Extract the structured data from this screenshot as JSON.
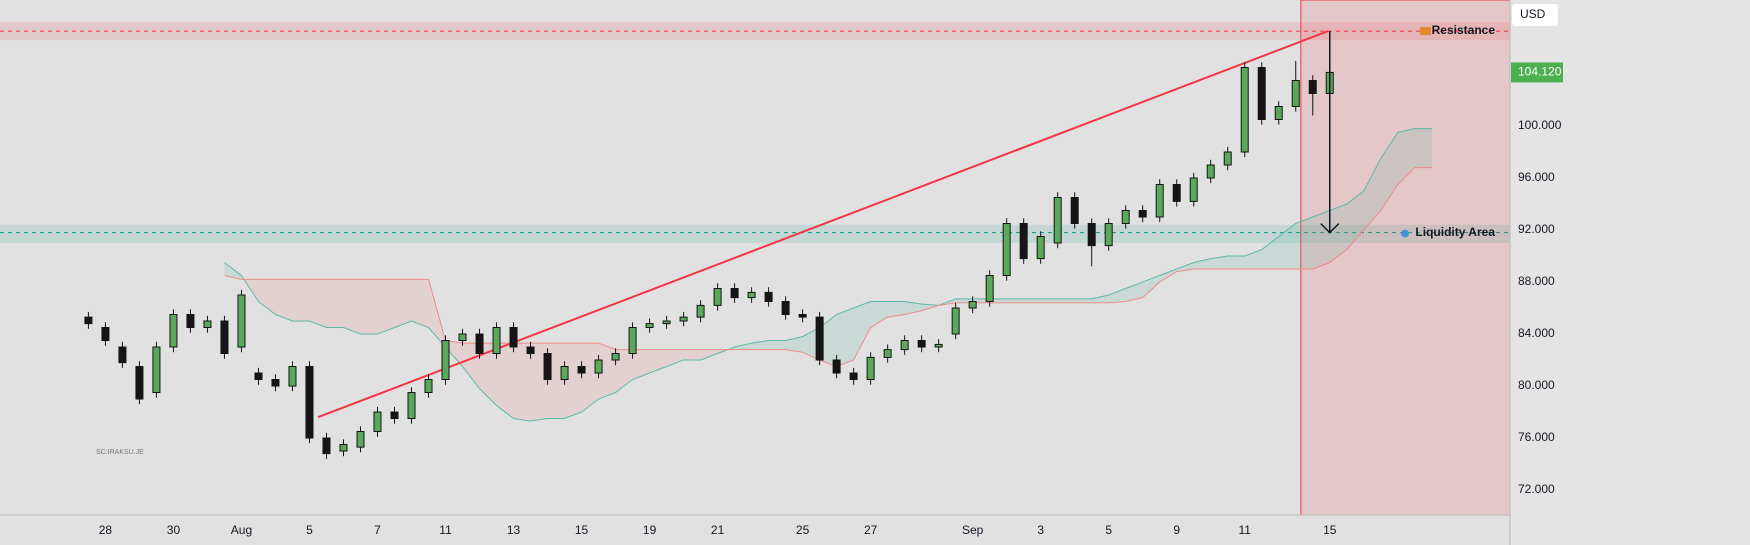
{
  "chart_data": {
    "type": "candlestick",
    "currency": "USD",
    "watermark": "SC:IRAKSU.JE",
    "xlim": [
      -5.2,
      83.6
    ],
    "ylim": [
      70.08,
      109.69
    ],
    "yticks": [
      {
        "value": 72,
        "label": "72.000"
      },
      {
        "value": 76,
        "label": "76.000"
      },
      {
        "value": 80,
        "label": "80.000"
      },
      {
        "value": 84,
        "label": "84.000"
      },
      {
        "value": 88,
        "label": "88.000"
      },
      {
        "value": 92,
        "label": "92.000"
      },
      {
        "value": 96,
        "label": "96.000"
      },
      {
        "value": 100,
        "label": "100.000"
      }
    ],
    "grid": false,
    "last_price": {
      "value": 104.12,
      "label": "104.120"
    },
    "up_color": "#5aa85a",
    "down_color": "#151515",
    "categories": [
      null,
      "28",
      null,
      null,
      null,
      "30",
      null,
      null,
      null,
      "Aug",
      null,
      null,
      null,
      "5",
      null,
      null,
      null,
      "7",
      null,
      null,
      null,
      "11",
      null,
      null,
      null,
      "13",
      null,
      null,
      null,
      "15",
      null,
      null,
      null,
      "19",
      null,
      null,
      null,
      "21",
      null,
      null,
      null,
      null,
      "25",
      null,
      null,
      null,
      "27",
      null,
      null,
      null,
      null,
      null,
      "Sep",
      null,
      null,
      null,
      "3",
      null,
      null,
      null,
      "5",
      null,
      null,
      null,
      "9",
      null,
      null,
      null,
      "11",
      null,
      null,
      null,
      null,
      "15",
      null,
      null,
      null,
      null,
      null,
      null
    ],
    "open": [
      85.3,
      84.5,
      83,
      81.5,
      79.5,
      83,
      85.5,
      84.5,
      85,
      83,
      81,
      80.5,
      80,
      81.5,
      76,
      75,
      75.3,
      76.5,
      78,
      77.5,
      79.5,
      80.5,
      83.5,
      84,
      82.5,
      84.5,
      83,
      82.5,
      80.5,
      81.5,
      81,
      82,
      82.5,
      84.5,
      84.8,
      85,
      85.3,
      86.2,
      87.5,
      86.8,
      87.2,
      86.5,
      85.5,
      85.3,
      82,
      81,
      80.5,
      82.2,
      82.8,
      83.5,
      83,
      84,
      86,
      86.5,
      88.5,
      92.5,
      89.8,
      91,
      94.5,
      92.5,
      90.8,
      92.5,
      93.5,
      93,
      95.5,
      94.2,
      96,
      97,
      98,
      104.5,
      100.5,
      101.5,
      103.5,
      102.5,
      null,
      null,
      null,
      null,
      null,
      null
    ],
    "high": [
      85.7,
      84.9,
      83.4,
      81.9,
      83.4,
      85.9,
      85.9,
      85.4,
      85.4,
      87.4,
      81.4,
      80.9,
      81.9,
      81.9,
      76.4,
      75.9,
      76.9,
      78.4,
      78.4,
      79.9,
      80.9,
      83.9,
      84.4,
      84.4,
      84.9,
      84.9,
      83.4,
      82.9,
      81.9,
      81.9,
      82.4,
      82.9,
      84.9,
      85.2,
      85.4,
      85.7,
      86.6,
      87.9,
      87.9,
      87.6,
      87.6,
      86.9,
      85.9,
      85.7,
      82.4,
      81.4,
      82.6,
      83.2,
      83.9,
      83.9,
      83.6,
      86.4,
      86.9,
      88.9,
      92.9,
      92.9,
      91.9,
      94.9,
      94.9,
      92.9,
      92.9,
      93.9,
      93.9,
      95.9,
      95.9,
      96.4,
      97.4,
      98.4,
      104.9,
      104.9,
      101.9,
      105.0,
      103.9,
      104.5,
      null,
      null,
      null,
      null,
      null,
      null
    ],
    "low": [
      84.4,
      83.1,
      81.4,
      78.6,
      79.1,
      82.6,
      84.1,
      84.1,
      82.1,
      82.6,
      80.1,
      79.6,
      79.6,
      75.6,
      74.4,
      74.6,
      74.9,
      76.1,
      77.1,
      77.1,
      79.1,
      80.1,
      83.1,
      82.1,
      82.1,
      82.6,
      82.1,
      80.1,
      80.1,
      80.6,
      80.6,
      81.6,
      82.1,
      84.1,
      84.4,
      84.6,
      84.9,
      85.8,
      86.4,
      86.4,
      86.1,
      85.1,
      84.9,
      81.6,
      80.6,
      80.1,
      80.1,
      81.8,
      82.4,
      82.6,
      82.6,
      83.6,
      85.6,
      86.1,
      88.1,
      89.4,
      89.4,
      90.6,
      92.1,
      89.2,
      90.4,
      92.1,
      92.6,
      92.6,
      93.8,
      93.8,
      95.6,
      96.6,
      97.6,
      100.1,
      100.1,
      101.1,
      100.8,
      102.1,
      null,
      null,
      null,
      null,
      null,
      null
    ],
    "close": [
      84.8,
      83.5,
      81.8,
      79,
      83,
      85.5,
      84.5,
      85,
      82.5,
      87,
      80.5,
      80,
      81.5,
      76,
      74.8,
      75.5,
      76.5,
      78,
      77.5,
      79.5,
      80.5,
      83.5,
      84,
      82.5,
      84.5,
      83,
      82.5,
      80.5,
      81.5,
      81,
      82,
      82.5,
      84.5,
      84.8,
      85,
      85.3,
      86.2,
      87.5,
      86.8,
      87.2,
      86.5,
      85.5,
      85.3,
      82,
      81,
      80.5,
      82.2,
      82.8,
      83.5,
      83,
      83.2,
      86,
      86.5,
      88.5,
      92.5,
      89.8,
      91.5,
      94.5,
      92.5,
      90.8,
      92.5,
      93.5,
      93,
      95.5,
      94.2,
      96,
      97,
      98,
      104.5,
      100.5,
      101.5,
      103.5,
      102.5,
      104.12,
      null,
      null,
      null,
      null,
      null,
      null
    ],
    "cloud": {
      "a_color": "#5fb8a8",
      "b_color": "#ef8a8a",
      "a": [
        null,
        null,
        null,
        null,
        null,
        null,
        null,
        null,
        89.5,
        88.5,
        86.5,
        85.5,
        85,
        85,
        84.5,
        84.5,
        84,
        84,
        84.5,
        85,
        84.5,
        83,
        81.5,
        79.8,
        78.5,
        77.5,
        77.3,
        77.5,
        77.5,
        78,
        79,
        79.5,
        80.5,
        81,
        81.5,
        82,
        82,
        82.5,
        83,
        83.3,
        83.5,
        83.5,
        83.8,
        84.5,
        85.5,
        86,
        86.5,
        86.5,
        86.5,
        86.3,
        86.2,
        86.7,
        86.7,
        86.7,
        86.7,
        86.7,
        86.7,
        86.7,
        86.7,
        86.7,
        87,
        87.5,
        88,
        88.5,
        89,
        89.5,
        89.8,
        90,
        90,
        90.5,
        91.5,
        92.5,
        93,
        93.5,
        94,
        95,
        97.5,
        99.5,
        99.8,
        99.8
      ],
      "b": [
        null,
        null,
        null,
        null,
        null,
        null,
        null,
        null,
        88.5,
        88.2,
        88.2,
        88.2,
        88.2,
        88.2,
        88.2,
        88.2,
        88.2,
        88.2,
        88.2,
        88.2,
        88.2,
        83.5,
        83.3,
        83.3,
        83.3,
        83.3,
        83.3,
        83.3,
        83.3,
        83.3,
        83.3,
        82.8,
        82.8,
        82.8,
        82.8,
        82.8,
        82.8,
        82.8,
        82.8,
        82.8,
        82.8,
        82.8,
        82.6,
        82.0,
        81.5,
        82,
        84.5,
        85.3,
        85.5,
        85.8,
        86.2,
        86.4,
        86.4,
        86.4,
        86.4,
        86.4,
        86.4,
        86.4,
        86.4,
        86.4,
        86.4,
        86.5,
        86.8,
        88,
        88.8,
        89,
        89,
        89,
        89,
        89,
        89,
        89,
        89,
        89.5,
        90.5,
        92,
        93.5,
        95.5,
        96.8,
        96.8
      ]
    },
    "zones": [
      {
        "label": "Resistance",
        "level": 107.3,
        "low": 106.6,
        "high": 108.0,
        "color": "#f23645"
      },
      {
        "label": "Liquidity Area",
        "level": 91.8,
        "low": 91.0,
        "high": 92.4,
        "color": "#089981"
      }
    ],
    "shade_from": 71.3,
    "trendline": {
      "x": [
        13.5,
        72.9
      ],
      "y": [
        77.6,
        107.3
      ],
      "color": "#f23645"
    },
    "arrow": {
      "x": 73,
      "from": 107.3,
      "to": 91.8
    }
  }
}
